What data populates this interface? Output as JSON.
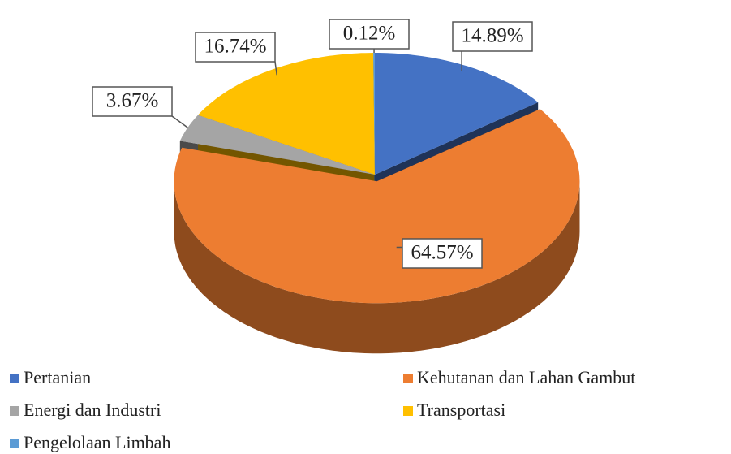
{
  "chart_data": {
    "type": "pie",
    "categories": [
      "Pertanian",
      "Kehutanan dan Lahan Gambut",
      "Energi dan Industri",
      "Transportasi",
      "Pengelolaan Limbah"
    ],
    "values": [
      14.89,
      64.57,
      3.67,
      16.74,
      0.12
    ],
    "value_labels": [
      "14.89%",
      "64.57%",
      "3.67%",
      "16.74%",
      "0.12%"
    ],
    "colors": [
      "#4472c4",
      "#ed7d31",
      "#a5a5a5",
      "#ffc000",
      "#5b9bd5"
    ],
    "legend": "bottom"
  }
}
